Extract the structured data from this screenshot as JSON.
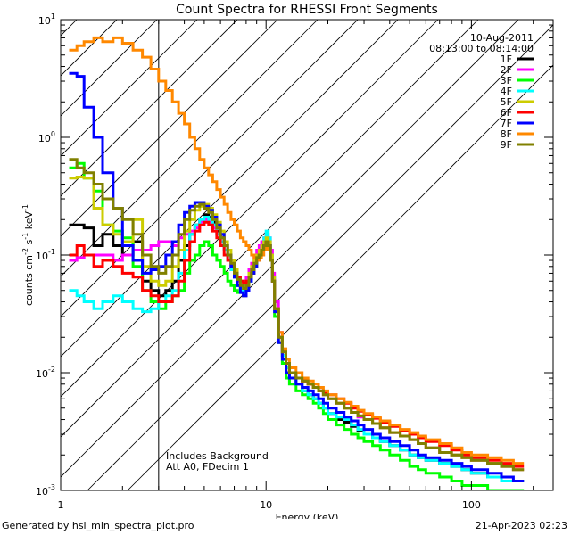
{
  "chart_data": {
    "type": "line",
    "title": "Count Spectra for RHESSI Front Segments",
    "xlabel": "Energy (keV)",
    "ylabel_parts": [
      "counts cm",
      "-2",
      " s",
      "-1",
      " keV",
      "-1"
    ],
    "xscale": "log",
    "yscale": "log",
    "xlim": [
      1,
      250
    ],
    "ylim": [
      0.001,
      10
    ],
    "x_ticks": [
      {
        "value": 1,
        "label": "1"
      },
      {
        "value": 10,
        "label": "10"
      },
      {
        "value": 100,
        "label": "100"
      }
    ],
    "y_ticks": [
      {
        "value": 0.001,
        "base": "10",
        "exp": "-3"
      },
      {
        "value": 0.01,
        "base": "10",
        "exp": "-2"
      },
      {
        "value": 0.1,
        "base": "10",
        "exp": "-1"
      },
      {
        "value": 1,
        "base": "10",
        "exp": "0"
      },
      {
        "value": 10,
        "base": "10",
        "exp": "1"
      }
    ],
    "date": "10-Aug-2011",
    "time_range": "08:13:00 to 08:14:00",
    "hatched_region": {
      "x_min": 1,
      "x_max": 3
    },
    "annotations": [
      "Includes Background",
      "Att A0, FDecim 1"
    ],
    "energy_edges": [
      1.1,
      1.2,
      1.3,
      1.45,
      1.6,
      1.8,
      2.0,
      2.25,
      2.5,
      2.75,
      3.0,
      3.25,
      3.5,
      3.75,
      4.0,
      4.25,
      4.5,
      4.75,
      5.0,
      5.25,
      5.5,
      5.75,
      6.0,
      6.25,
      6.5,
      6.75,
      7.0,
      7.25,
      7.5,
      7.75,
      8.0,
      8.25,
      8.5,
      8.75,
      9.0,
      9.25,
      9.5,
      9.75,
      10.0,
      10.25,
      10.5,
      10.75,
      11.0,
      11.5,
      12.0,
      12.5,
      13,
      14,
      15,
      16,
      17,
      18,
      19,
      20,
      22,
      24,
      26,
      28,
      30,
      33,
      36,
      40,
      45,
      50,
      55,
      60,
      70,
      80,
      90,
      100,
      120,
      140,
      160,
      180,
      200,
      230
    ],
    "series": [
      {
        "name": "1F",
        "color": "#000000",
        "values": [
          0.18,
          0.18,
          0.17,
          0.12,
          0.15,
          0.12,
          0.1,
          0.13,
          0.06,
          0.05,
          0.045,
          0.05,
          0.06,
          0.09,
          0.12,
          0.15,
          0.18,
          0.2,
          0.22,
          0.21,
          0.19,
          0.16,
          0.14,
          0.12,
          0.1,
          0.08,
          0.065,
          0.055,
          0.05,
          0.045,
          0.05,
          0.06,
          0.07,
          0.08,
          0.09,
          0.1,
          0.11,
          0.12,
          0.13,
          0.12,
          0.09,
          0.06,
          0.035,
          0.02,
          0.014,
          0.011,
          0.009,
          0.008,
          0.007,
          0.0065,
          0.006,
          0.0055,
          0.005,
          0.0045,
          0.004,
          0.0038,
          0.0035,
          0.0032,
          0.003,
          0.0028,
          0.0026,
          0.0024,
          0.0022,
          0.002,
          0.0019,
          0.0018,
          0.0017,
          0.0016,
          0.0015,
          0.0014,
          0.0013,
          0.0012,
          0.0012
        ]
      },
      {
        "name": "2F",
        "color": "#ff00ff",
        "values": [
          0.09,
          0.095,
          0.1,
          0.1,
          0.1,
          0.09,
          0.1,
          0.11,
          0.11,
          0.12,
          0.13,
          0.13,
          0.12,
          0.14,
          0.15,
          0.16,
          0.17,
          0.19,
          0.2,
          0.19,
          0.17,
          0.15,
          0.13,
          0.11,
          0.09,
          0.075,
          0.065,
          0.06,
          0.055,
          0.06,
          0.065,
          0.075,
          0.085,
          0.095,
          0.11,
          0.12,
          0.13,
          0.14,
          0.15,
          0.14,
          0.11,
          0.07,
          0.04,
          0.022,
          0.015,
          0.012,
          0.01,
          0.009,
          0.0085,
          0.008,
          0.0075,
          0.007,
          0.0065,
          0.006,
          0.0055,
          0.005,
          0.0046,
          0.0042,
          0.004,
          0.0037,
          0.0034,
          0.0031,
          0.0029,
          0.0027,
          0.0025,
          0.0023,
          0.0021,
          0.002,
          0.0019,
          0.0018,
          0.0017,
          0.0016,
          0.0015
        ]
      },
      {
        "name": "3F",
        "color": "#00ff00",
        "values": [
          0.55,
          0.6,
          0.45,
          0.35,
          0.18,
          0.16,
          0.14,
          0.08,
          0.05,
          0.04,
          0.035,
          0.04,
          0.045,
          0.05,
          0.07,
          0.09,
          0.1,
          0.12,
          0.13,
          0.12,
          0.1,
          0.09,
          0.08,
          0.07,
          0.06,
          0.055,
          0.05,
          0.048,
          0.05,
          0.055,
          0.06,
          0.065,
          0.07,
          0.08,
          0.09,
          0.1,
          0.11,
          0.12,
          0.13,
          0.12,
          0.09,
          0.06,
          0.03,
          0.018,
          0.012,
          0.009,
          0.008,
          0.007,
          0.0065,
          0.006,
          0.0055,
          0.005,
          0.0045,
          0.004,
          0.0036,
          0.0033,
          0.003,
          0.0028,
          0.0026,
          0.0024,
          0.0022,
          0.002,
          0.0018,
          0.0016,
          0.0015,
          0.0014,
          0.0013,
          0.0012,
          0.0011,
          0.0011,
          0.001,
          0.001,
          0.001
        ]
      },
      {
        "name": "4F",
        "color": "#00ffff",
        "values": [
          0.05,
          0.045,
          0.04,
          0.035,
          0.04,
          0.045,
          0.04,
          0.035,
          0.033,
          0.035,
          0.04,
          0.045,
          0.05,
          0.07,
          0.11,
          0.15,
          0.18,
          0.2,
          0.21,
          0.2,
          0.18,
          0.15,
          0.13,
          0.11,
          0.09,
          0.075,
          0.065,
          0.055,
          0.05,
          0.048,
          0.05,
          0.06,
          0.07,
          0.08,
          0.09,
          0.1,
          0.12,
          0.14,
          0.16,
          0.14,
          0.1,
          0.065,
          0.035,
          0.02,
          0.014,
          0.011,
          0.009,
          0.008,
          0.007,
          0.0065,
          0.006,
          0.0055,
          0.005,
          0.0045,
          0.0042,
          0.004,
          0.0036,
          0.0033,
          0.003,
          0.0028,
          0.0026,
          0.0024,
          0.0022,
          0.002,
          0.0019,
          0.0018,
          0.0017,
          0.0016,
          0.0015,
          0.0014,
          0.0013,
          0.0012,
          0.0012
        ]
      },
      {
        "name": "5F",
        "color": "#cccc00",
        "values": [
          0.45,
          0.46,
          0.45,
          0.25,
          0.18,
          0.15,
          0.13,
          0.2,
          0.08,
          0.06,
          0.055,
          0.06,
          0.08,
          0.11,
          0.16,
          0.2,
          0.24,
          0.26,
          0.27,
          0.25,
          0.22,
          0.19,
          0.16,
          0.13,
          0.11,
          0.09,
          0.075,
          0.065,
          0.06,
          0.055,
          0.06,
          0.07,
          0.08,
          0.09,
          0.1,
          0.11,
          0.12,
          0.13,
          0.14,
          0.13,
          0.1,
          0.065,
          0.035,
          0.02,
          0.015,
          0.012,
          0.01,
          0.009,
          0.0085,
          0.008,
          0.0075,
          0.007,
          0.0065,
          0.006,
          0.0055,
          0.005,
          0.0046,
          0.0043,
          0.004,
          0.0037,
          0.0034,
          0.0031,
          0.0029,
          0.0027,
          0.0025,
          0.0023,
          0.0021,
          0.002,
          0.0019,
          0.0018,
          0.0017,
          0.0016,
          0.0015
        ]
      },
      {
        "name": "6F",
        "color": "#ff0000",
        "values": [
          0.1,
          0.12,
          0.1,
          0.08,
          0.09,
          0.08,
          0.07,
          0.065,
          0.05,
          0.045,
          0.04,
          0.04,
          0.045,
          0.06,
          0.09,
          0.13,
          0.16,
          0.18,
          0.19,
          0.18,
          0.16,
          0.14,
          0.12,
          0.1,
          0.09,
          0.08,
          0.07,
          0.065,
          0.06,
          0.058,
          0.06,
          0.065,
          0.07,
          0.08,
          0.09,
          0.1,
          0.11,
          0.12,
          0.13,
          0.12,
          0.09,
          0.06,
          0.035,
          0.02,
          0.015,
          0.012,
          0.01,
          0.009,
          0.0085,
          0.008,
          0.0075,
          0.007,
          0.0068,
          0.0065,
          0.006,
          0.0055,
          0.005,
          0.0047,
          0.0044,
          0.0041,
          0.0038,
          0.0035,
          0.0032,
          0.003,
          0.0028,
          0.0026,
          0.0024,
          0.0022,
          0.002,
          0.0019,
          0.0018,
          0.0017,
          0.0016
        ]
      },
      {
        "name": "7F",
        "color": "#0000ff",
        "values": [
          3.5,
          3.3,
          1.8,
          1.0,
          0.5,
          0.25,
          0.12,
          0.09,
          0.07,
          0.075,
          0.08,
          0.1,
          0.13,
          0.18,
          0.23,
          0.26,
          0.28,
          0.28,
          0.26,
          0.24,
          0.21,
          0.18,
          0.15,
          0.12,
          0.1,
          0.08,
          0.065,
          0.055,
          0.048,
          0.045,
          0.05,
          0.06,
          0.07,
          0.08,
          0.09,
          0.1,
          0.11,
          0.12,
          0.13,
          0.12,
          0.09,
          0.06,
          0.033,
          0.018,
          0.013,
          0.01,
          0.009,
          0.008,
          0.0075,
          0.007,
          0.0065,
          0.006,
          0.0055,
          0.005,
          0.0046,
          0.0042,
          0.0039,
          0.0036,
          0.0033,
          0.003,
          0.0028,
          0.0026,
          0.0024,
          0.0022,
          0.002,
          0.0019,
          0.0018,
          0.0017,
          0.0016,
          0.0015,
          0.0014,
          0.0013,
          0.0012
        ]
      },
      {
        "name": "8F",
        "color": "#ff8800",
        "values": [
          5.5,
          6.0,
          6.5,
          7.0,
          6.5,
          7.0,
          6.3,
          5.5,
          4.8,
          3.8,
          3.0,
          2.5,
          2.0,
          1.6,
          1.3,
          1.0,
          0.8,
          0.65,
          0.55,
          0.48,
          0.42,
          0.36,
          0.31,
          0.27,
          0.23,
          0.2,
          0.18,
          0.16,
          0.14,
          0.13,
          0.12,
          0.11,
          0.1,
          0.095,
          0.09,
          0.095,
          0.1,
          0.11,
          0.12,
          0.11,
          0.09,
          0.06,
          0.035,
          0.022,
          0.016,
          0.013,
          0.011,
          0.01,
          0.009,
          0.0085,
          0.008,
          0.0075,
          0.007,
          0.0065,
          0.006,
          0.0056,
          0.0052,
          0.0048,
          0.0045,
          0.0042,
          0.0039,
          0.0036,
          0.0033,
          0.0031,
          0.0029,
          0.0027,
          0.0025,
          0.0023,
          0.0021,
          0.002,
          0.0019,
          0.0018,
          0.0017
        ]
      },
      {
        "name": "9F",
        "color": "#808000",
        "values": [
          0.65,
          0.55,
          0.5,
          0.4,
          0.3,
          0.25,
          0.2,
          0.15,
          0.1,
          0.08,
          0.07,
          0.08,
          0.1,
          0.15,
          0.2,
          0.24,
          0.26,
          0.27,
          0.25,
          0.23,
          0.2,
          0.17,
          0.14,
          0.12,
          0.1,
          0.085,
          0.07,
          0.062,
          0.055,
          0.052,
          0.055,
          0.065,
          0.075,
          0.085,
          0.095,
          0.1,
          0.11,
          0.12,
          0.13,
          0.12,
          0.09,
          0.06,
          0.035,
          0.02,
          0.015,
          0.012,
          0.01,
          0.009,
          0.0085,
          0.008,
          0.0075,
          0.007,
          0.0065,
          0.006,
          0.0055,
          0.005,
          0.0046,
          0.0043,
          0.004,
          0.0037,
          0.0034,
          0.0031,
          0.0029,
          0.0027,
          0.0025,
          0.0023,
          0.0021,
          0.002,
          0.0019,
          0.0018,
          0.0017,
          0.0016,
          0.0015
        ]
      }
    ]
  },
  "footer": {
    "left": "Generated by hsi_min_spectra_plot.pro",
    "right": "21-Apr-2023 02:23"
  }
}
